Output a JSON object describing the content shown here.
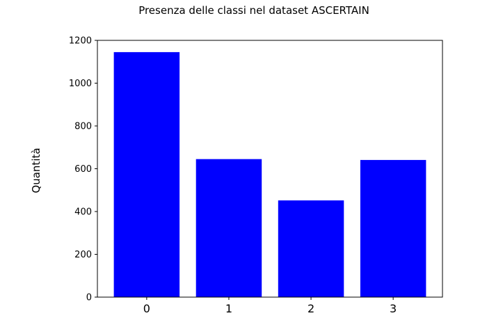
{
  "chart_data": {
    "type": "bar",
    "title": "Presenza delle classi nel dataset ASCERTAIN",
    "xlabel": "",
    "ylabel": "Quantità",
    "categories": [
      "0",
      "1",
      "2",
      "3"
    ],
    "values": [
      1145,
      645,
      452,
      641
    ],
    "ylim": [
      0,
      1200
    ],
    "yticks": [
      0,
      200,
      400,
      600,
      800,
      1000,
      1200
    ],
    "bar_color": "#0000ff",
    "grid": false,
    "legend": "none"
  }
}
